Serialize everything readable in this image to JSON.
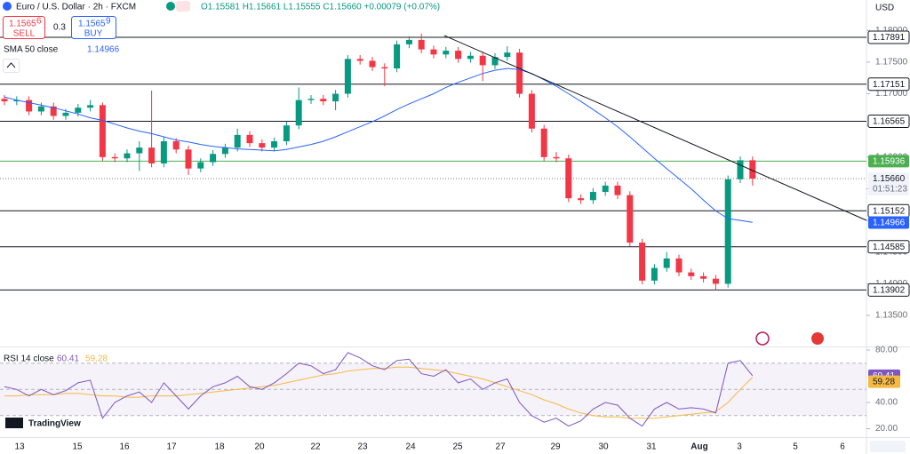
{
  "header": {
    "symbol": "Euro / U.S. Dollar · 2h · FXCM",
    "ohlc": "O1.15581 H1.15661 L1.15555 C1.15660 +0.00079 (+0.07%)",
    "sell_price": "1.1565",
    "sell_sup": "6",
    "sell": "SELL",
    "spread": "0.3",
    "buy_price": "1.1565",
    "buy_sup": "9",
    "buy": "BUY"
  },
  "currency": "USD",
  "logo": "TradingView",
  "chart_data": {
    "type": "candlestick",
    "up_color": "#089981",
    "down_color": "#f23645",
    "ylim": [
      1.1301,
      1.1848
    ],
    "yticks": [
      {
        "value": 1.135,
        "label": "1.13500"
      },
      {
        "value": 1.14,
        "label": "1.14000"
      },
      {
        "value": 1.145,
        "label": "1.14500"
      },
      {
        "value": 1.15,
        "label": "1.15000"
      },
      {
        "value": 1.155,
        "label": "1.15500"
      },
      {
        "value": 1.16,
        "label": "1.16000"
      },
      {
        "value": 1.165,
        "label": "1.16500"
      },
      {
        "value": 1.17,
        "label": "1.17000"
      },
      {
        "value": 1.175,
        "label": "1.17500"
      },
      {
        "value": 1.18,
        "label": "1.18000"
      }
    ],
    "categories": [
      "13",
      "15",
      "16",
      "17",
      "18",
      "20",
      "22",
      "23",
      "24",
      "25",
      "27",
      "29",
      "30",
      "31",
      "Aug",
      "3",
      "5",
      "6"
    ],
    "levels": [
      {
        "value": 1.17891,
        "label": "1.17891"
      },
      {
        "value": 1.17151,
        "label": "1.17151"
      },
      {
        "value": 1.16565,
        "label": "1.16565"
      },
      {
        "value": 1.15152,
        "label": "1.15152"
      },
      {
        "value": 1.14585,
        "label": "1.14585"
      },
      {
        "value": 1.13902,
        "label": "1.13902"
      }
    ],
    "alert_level": {
      "value": 1.15936,
      "label": "1.15936",
      "color": "#4caf50"
    },
    "last_price": {
      "value": 1.1566,
      "label": "1.15660",
      "countdown": "01:51:23"
    },
    "sma": {
      "name": "SMA 50 close",
      "value_label": "1.14966",
      "value": 1.14966,
      "color": "#2962ff",
      "values": [
        1.1695,
        1.169,
        1.1686,
        1.1682,
        1.1678,
        1.1673,
        1.1668,
        1.1662,
        1.1658,
        1.1652,
        1.1646,
        1.1641,
        1.1637,
        1.1632,
        1.1627,
        1.1624,
        1.162,
        1.1617,
        1.1615,
        1.1613,
        1.1612,
        1.1611,
        1.161,
        1.1612,
        1.1616,
        1.162,
        1.1625,
        1.1632,
        1.164,
        1.1648,
        1.1656,
        1.1665,
        1.1675,
        1.1684,
        1.1692,
        1.17,
        1.171,
        1.1718,
        1.1725,
        1.1732,
        1.1737,
        1.174,
        1.1738,
        1.1732,
        1.1722,
        1.1712,
        1.17,
        1.1688,
        1.1675,
        1.1662,
        1.1648,
        1.1632,
        1.1615,
        1.1598,
        1.1582,
        1.1566,
        1.155,
        1.1532,
        1.1515,
        1.1503,
        1.15,
        1.1497
      ]
    },
    "candles": [
      [
        1.1692,
        1.1698,
        1.1682,
        1.1688
      ],
      [
        1.1688,
        1.1696,
        1.1682,
        1.169
      ],
      [
        1.169,
        1.1696,
        1.1666,
        1.1672
      ],
      [
        1.1672,
        1.1686,
        1.1666,
        1.168
      ],
      [
        1.168,
        1.1686,
        1.1659,
        1.1665
      ],
      [
        1.1665,
        1.1676,
        1.1659,
        1.167
      ],
      [
        1.167,
        1.1684,
        1.1664,
        1.1678
      ],
      [
        1.1678,
        1.169,
        1.1672,
        1.1682
      ],
      [
        1.1682,
        1.1686,
        1.1594,
        1.16
      ],
      [
        1.16,
        1.1606,
        1.1592,
        1.1598
      ],
      [
        1.1598,
        1.1612,
        1.1592,
        1.1606
      ],
      [
        1.1606,
        1.1625,
        1.1578,
        1.1615
      ],
      [
        1.1615,
        1.1705,
        1.1584,
        1.159
      ],
      [
        1.159,
        1.1632,
        1.1584,
        1.1625
      ],
      [
        1.1625,
        1.163,
        1.1606,
        1.1612
      ],
      [
        1.1612,
        1.1618,
        1.1572,
        1.1582
      ],
      [
        1.1582,
        1.1598,
        1.1576,
        1.1592
      ],
      [
        1.1592,
        1.1611,
        1.1586,
        1.1605
      ],
      [
        1.1605,
        1.1621,
        1.1599,
        1.1615
      ],
      [
        1.1615,
        1.1645,
        1.1609,
        1.1635
      ],
      [
        1.1635,
        1.1641,
        1.1616,
        1.1622
      ],
      [
        1.1622,
        1.1628,
        1.1609,
        1.1615
      ],
      [
        1.1615,
        1.1631,
        1.1609,
        1.1625
      ],
      [
        1.1625,
        1.1656,
        1.1619,
        1.165
      ],
      [
        1.165,
        1.171,
        1.1644,
        1.169
      ],
      [
        1.169,
        1.1698,
        1.1684,
        1.1692
      ],
      [
        1.1692,
        1.1698,
        1.1682,
        1.1688
      ],
      [
        1.1688,
        1.1706,
        1.1674,
        1.17
      ],
      [
        1.17,
        1.1761,
        1.1694,
        1.1755
      ],
      [
        1.1755,
        1.1761,
        1.1746,
        1.1752
      ],
      [
        1.1752,
        1.1758,
        1.1736,
        1.1742
      ],
      [
        1.1742,
        1.1748,
        1.1712,
        1.174
      ],
      [
        1.174,
        1.1784,
        1.1734,
        1.1778
      ],
      [
        1.1778,
        1.1791,
        1.1772,
        1.1785
      ],
      [
        1.1785,
        1.1795,
        1.1764,
        1.177
      ],
      [
        1.177,
        1.1776,
        1.1756,
        1.1762
      ],
      [
        1.1762,
        1.1774,
        1.1756,
        1.1768
      ],
      [
        1.1768,
        1.1774,
        1.1749,
        1.1755
      ],
      [
        1.1755,
        1.1766,
        1.1749,
        1.176
      ],
      [
        1.176,
        1.1766,
        1.172,
        1.1745
      ],
      [
        1.1745,
        1.1764,
        1.1739,
        1.1758
      ],
      [
        1.1758,
        1.1775,
        1.1752,
        1.1765
      ],
      [
        1.1765,
        1.1771,
        1.1694,
        1.17
      ],
      [
        1.17,
        1.1706,
        1.1639,
        1.1645
      ],
      [
        1.1645,
        1.1651,
        1.1594,
        1.16
      ],
      [
        1.16,
        1.1608,
        1.1592,
        1.1598
      ],
      [
        1.1598,
        1.1604,
        1.1529,
        1.1535
      ],
      [
        1.1535,
        1.1541,
        1.1526,
        1.1532
      ],
      [
        1.1532,
        1.1551,
        1.1526,
        1.1545
      ],
      [
        1.1545,
        1.1561,
        1.1539,
        1.1555
      ],
      [
        1.1555,
        1.1561,
        1.1534,
        1.154
      ],
      [
        1.154,
        1.1546,
        1.1459,
        1.1465
      ],
      [
        1.1465,
        1.1471,
        1.1399,
        1.1405
      ],
      [
        1.1405,
        1.1431,
        1.1399,
        1.1425
      ],
      [
        1.1425,
        1.145,
        1.1419,
        1.144
      ],
      [
        1.144,
        1.1446,
        1.1412,
        1.1418
      ],
      [
        1.1418,
        1.1424,
        1.1406,
        1.1412
      ],
      [
        1.1412,
        1.1418,
        1.1402,
        1.1408
      ],
      [
        1.1408,
        1.1414,
        1.139,
        1.14
      ],
      [
        1.14,
        1.1571,
        1.1394,
        1.1565
      ],
      [
        1.1565,
        1.1601,
        1.1559,
        1.1595
      ],
      [
        1.1595,
        1.1601,
        1.1555,
        1.1566
      ]
    ],
    "rsi": {
      "name": "RSI 14 close",
      "ylim": [
        13.6,
        82.7
      ],
      "band": [
        30,
        70
      ],
      "mid": 50,
      "yticks": [
        {
          "value": 20,
          "label": "20.00"
        },
        {
          "value": 40,
          "label": "40.00"
        },
        {
          "value": 80,
          "label": "80.00"
        }
      ],
      "value_label": "60.41",
      "ma_label": "59.28",
      "color": "#7e57c2",
      "ma_color": "#f5b942",
      "values": [
        52,
        50,
        45,
        50,
        46,
        49,
        55,
        57,
        28,
        40,
        45,
        48,
        40,
        55,
        45,
        35,
        45,
        52,
        55,
        60,
        52,
        50,
        55,
        62,
        70,
        68,
        62,
        65,
        78,
        74,
        68,
        65,
        72,
        73,
        62,
        60,
        65,
        55,
        58,
        50,
        55,
        58,
        40,
        30,
        25,
        28,
        22,
        26,
        35,
        40,
        38,
        28,
        22,
        35,
        40,
        35,
        36,
        35,
        32,
        70,
        72,
        60.41
      ],
      "ma": [
        45,
        45,
        46,
        46,
        46,
        47,
        47,
        46,
        45,
        45,
        44,
        44,
        45,
        45,
        45,
        46,
        47,
        48,
        49,
        50,
        51,
        52,
        53,
        55,
        57,
        59,
        61,
        62,
        64,
        65,
        66,
        66,
        67,
        67,
        66,
        65,
        64,
        62,
        60,
        58,
        55,
        52,
        49,
        46,
        42,
        39,
        35,
        32,
        30,
        29,
        29,
        28,
        28,
        28,
        29,
        30,
        31,
        32,
        33,
        40,
        50,
        59.28
      ]
    }
  }
}
